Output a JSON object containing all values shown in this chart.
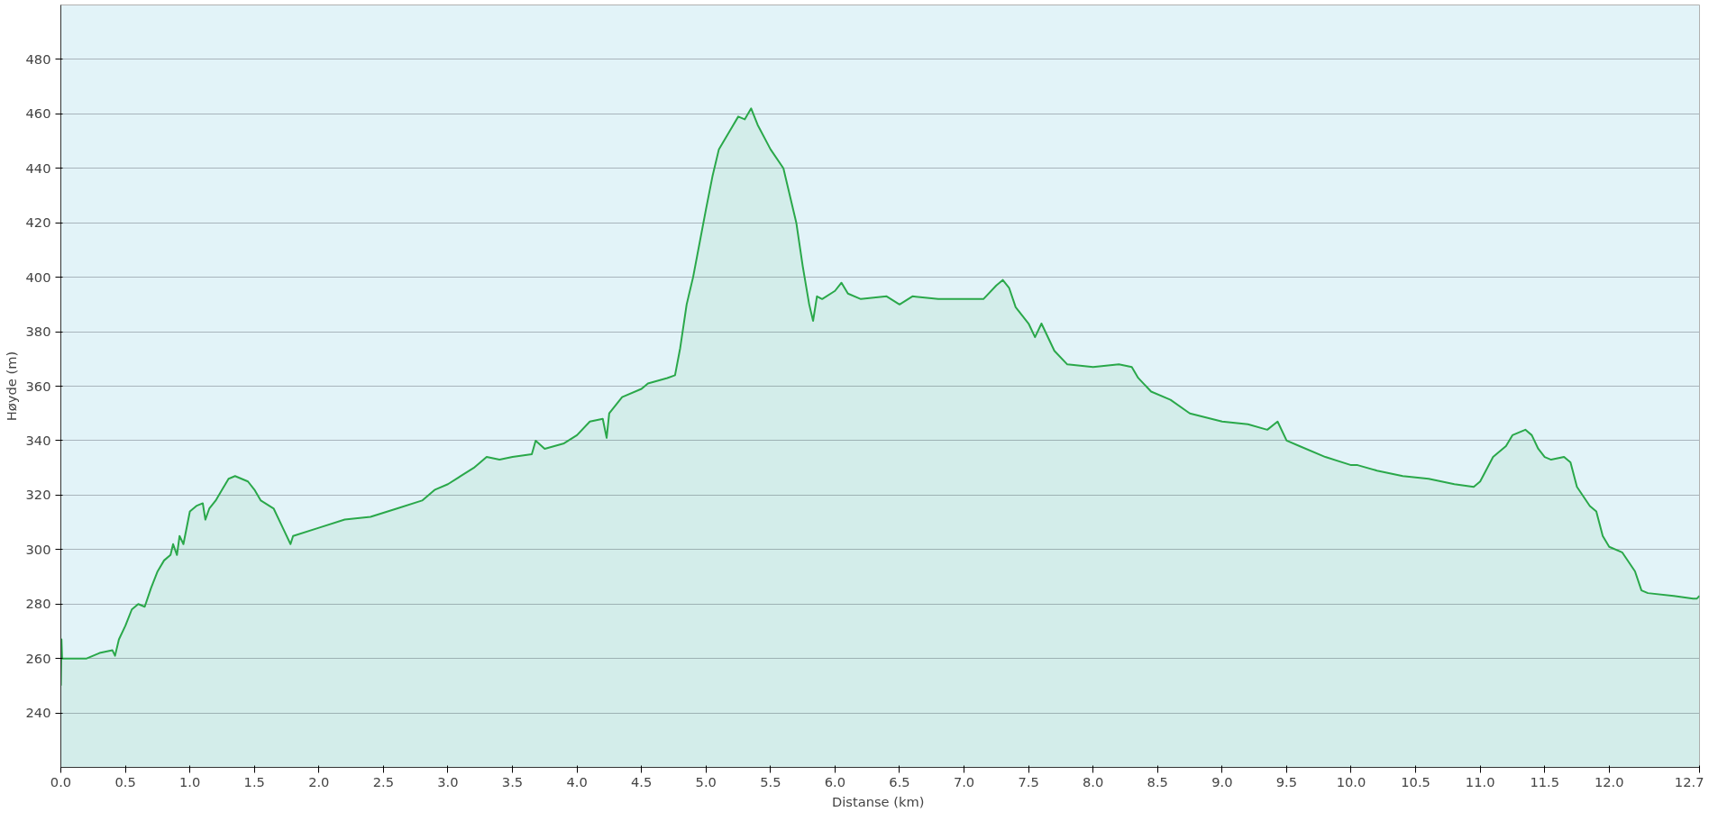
{
  "chart_data": {
    "type": "area",
    "xlabel": "Distanse  (km)",
    "ylabel": "Høyde (m)",
    "x": [
      0.0,
      0.005,
      0.01,
      0.2,
      0.3,
      0.4,
      0.42,
      0.45,
      0.5,
      0.55,
      0.6,
      0.65,
      0.7,
      0.75,
      0.8,
      0.85,
      0.87,
      0.9,
      0.92,
      0.95,
      1.0,
      1.05,
      1.1,
      1.12,
      1.15,
      1.2,
      1.25,
      1.3,
      1.35,
      1.4,
      1.45,
      1.5,
      1.55,
      1.65,
      1.72,
      1.78,
      1.8,
      2.0,
      2.2,
      2.4,
      2.6,
      2.8,
      2.9,
      3.0,
      3.1,
      3.2,
      3.3,
      3.4,
      3.5,
      3.65,
      3.68,
      3.75,
      3.9,
      4.0,
      4.1,
      4.2,
      4.23,
      4.25,
      4.35,
      4.5,
      4.55,
      4.7,
      4.76,
      4.8,
      4.85,
      4.9,
      5.0,
      5.05,
      5.1,
      5.2,
      5.25,
      5.3,
      5.35,
      5.4,
      5.5,
      5.6,
      5.65,
      5.7,
      5.75,
      5.8,
      5.83,
      5.86,
      5.9,
      6.0,
      6.05,
      6.1,
      6.2,
      6.4,
      6.5,
      6.6,
      6.8,
      7.0,
      7.15,
      7.25,
      7.3,
      7.35,
      7.4,
      7.5,
      7.55,
      7.6,
      7.7,
      7.8,
      8.0,
      8.2,
      8.3,
      8.35,
      8.45,
      8.6,
      8.75,
      9.0,
      9.2,
      9.35,
      9.43,
      9.5,
      9.6,
      9.8,
      10.0,
      10.05,
      10.2,
      10.4,
      10.6,
      10.8,
      10.95,
      11.0,
      11.1,
      11.2,
      11.25,
      11.3,
      11.35,
      11.4,
      11.45,
      11.5,
      11.55,
      11.65,
      11.7,
      11.75,
      11.85,
      11.9,
      11.95,
      12.0,
      12.1,
      12.2,
      12.25,
      12.3,
      12.5,
      12.65,
      12.68,
      12.7
    ],
    "series": [
      {
        "color": "#2aa84a",
        "values": [
          250,
          267,
          260,
          260,
          262,
          263,
          261,
          267,
          272,
          278,
          280,
          279,
          286,
          292,
          296,
          298,
          302,
          298,
          305,
          302,
          314,
          316,
          317,
          311,
          315,
          318,
          322,
          326,
          327,
          326,
          325,
          322,
          318,
          315,
          308,
          302,
          305,
          308,
          311,
          312,
          315,
          318,
          322,
          324,
          327,
          330,
          334,
          333,
          334,
          335,
          340,
          337,
          339,
          342,
          347,
          348,
          341,
          350,
          356,
          359,
          361,
          363,
          364,
          374,
          390,
          400,
          425,
          437,
          447,
          455,
          459,
          458,
          462,
          456,
          447,
          440,
          430,
          420,
          404,
          390,
          384,
          393,
          392,
          395,
          398,
          394,
          392,
          393,
          390,
          393,
          392,
          392,
          392,
          397,
          399,
          396,
          389,
          383,
          378,
          383,
          373,
          368,
          367,
          368,
          367,
          363,
          358,
          355,
          350,
          347,
          346,
          344,
          347,
          340,
          338,
          334,
          331,
          331,
          329,
          327,
          326,
          324,
          323,
          325,
          334,
          338,
          342,
          343,
          344,
          342,
          337,
          334,
          333,
          334,
          332,
          323,
          316,
          314,
          305,
          301,
          299,
          292,
          285,
          284,
          283,
          282,
          282,
          283
        ]
      }
    ],
    "xlim": [
      0,
      12.7
    ],
    "ylim": [
      220,
      500
    ],
    "xticks": [
      {
        "value": 0,
        "label": "0.0"
      },
      0.5,
      {
        "value": 1,
        "label": "1.0"
      },
      1.5,
      {
        "value": 2,
        "label": "2.0"
      },
      2.5,
      {
        "value": 3,
        "label": "3.0"
      },
      3.5,
      {
        "value": 4,
        "label": "4.0"
      },
      4.5,
      {
        "value": 5,
        "label": "5.0"
      },
      5.5,
      {
        "value": 6,
        "label": "6.0"
      },
      6.5,
      {
        "value": 7,
        "label": "7.0"
      },
      7.5,
      {
        "value": 8,
        "label": "8.0"
      },
      8.5,
      {
        "value": 9,
        "label": "9.0"
      },
      9.5,
      {
        "value": 10,
        "label": "10.0"
      },
      10.5,
      {
        "value": 11,
        "label": "11.0"
      },
      11.5,
      {
        "value": 12,
        "label": "12.0"
      },
      12.7
    ],
    "yticks": [
      240,
      260,
      280,
      300,
      320,
      340,
      360,
      380,
      400,
      420,
      440,
      460,
      480
    ],
    "grid": "y"
  }
}
